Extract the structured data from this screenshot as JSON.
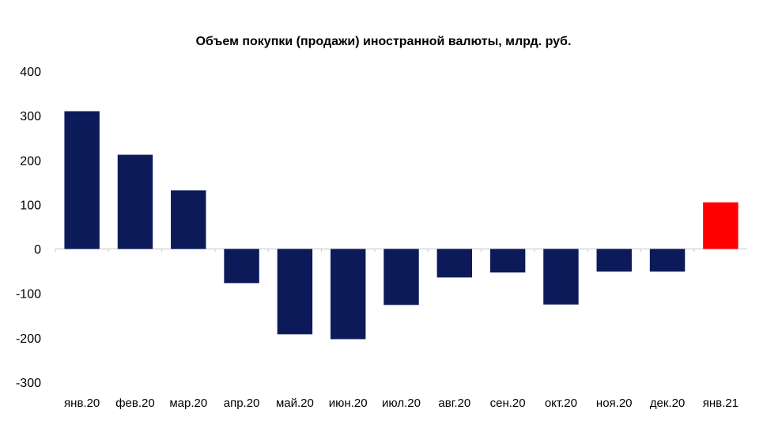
{
  "chart_data": {
    "type": "bar",
    "title": "Объем покупки (продажи) иностранной валюты, млрд. руб.",
    "categories": [
      "янв.20",
      "фев.20",
      "мар.20",
      "апр.20",
      "май.20",
      "июн.20",
      "июл.20",
      "авг.20",
      "сен.20",
      "окт.20",
      "ноя.20",
      "дек.20",
      "янв.21"
    ],
    "values": [
      310,
      212,
      132,
      -77,
      -192,
      -203,
      -126,
      -64,
      -53,
      -125,
      -51,
      -51,
      105
    ],
    "ylim": [
      -300,
      400
    ],
    "yticks": [
      -300,
      -200,
      -100,
      0,
      100,
      200,
      300,
      400
    ],
    "grid": false,
    "legend": "none",
    "colors": {
      "default": "#0d1a5a",
      "highlight": "#ff0000"
    },
    "highlight_index": 12
  }
}
